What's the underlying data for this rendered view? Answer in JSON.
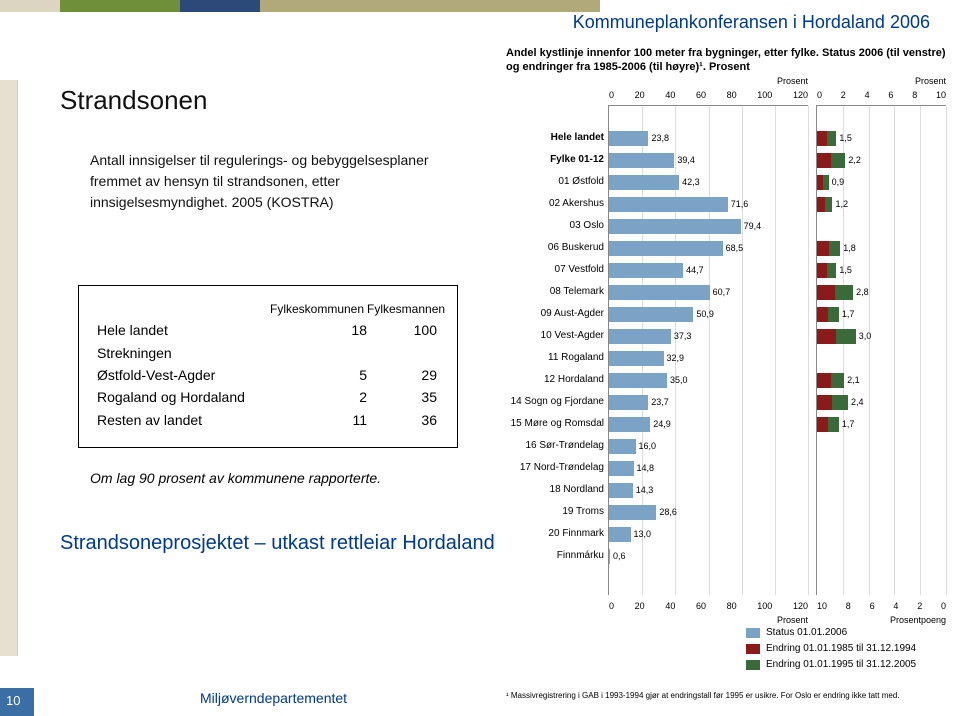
{
  "header_title": "Kommuneplankonferansen i Hordaland 2006",
  "top_bar_colors": [
    "#dcd6c0",
    "#6f8f3a",
    "#2b4a7a",
    "#b2a97a"
  ],
  "top_bar_widths": [
    60,
    120,
    80,
    340
  ],
  "section_title": "Strandsonen",
  "body_text": "Antall innsigelser til regulerings- og bebyggelsesplaner fremmet av hensyn til strandsonen, etter innsigelsesmyndighet. 2005 (KOSTRA)",
  "table": {
    "col_headers": [
      "",
      "Fylkeskommunen",
      "Fylkesmannen"
    ],
    "rows": [
      {
        "label": "Hele landet",
        "a": "18",
        "b": "100"
      },
      {
        "label": "Strekningen",
        "a": "",
        "b": ""
      },
      {
        "label": "Østfold-Vest-Agder",
        "a": "5",
        "b": "29"
      },
      {
        "label": "Rogaland og Hordaland",
        "a": "2",
        "b": "35"
      },
      {
        "label": "Resten av landet",
        "a": "11",
        "b": "36"
      }
    ]
  },
  "note": "Om lag 90 prosent av kommunene rapporterte.",
  "project_link": "Strandsoneprosjektet – utkast rettleiar Hordaland",
  "footer": "Miljøverndepartementet",
  "page_number": "10",
  "chart": {
    "title": "Andel kystlinje innenfor 100 meter fra bygninger, etter fylke. Status 2006 (til venstre) og endringer fra 1985-2006 (til høyre)¹. Prosent",
    "left": {
      "axis_top_label": "Prosent",
      "axis_bottom_label": "Prosent",
      "ticks": [
        "0",
        "20",
        "40",
        "60",
        "80",
        "100",
        "120"
      ],
      "max": 120,
      "bar_color": "#7aa3c6",
      "categories": [
        {
          "label": "Hele landet",
          "bold": true,
          "v": 23.8
        },
        {
          "label": "Fylke 01-12",
          "bold": true,
          "v": 39.4
        },
        {
          "label": "01 Østfold",
          "v": 42.3
        },
        {
          "label": "02 Akershus",
          "v": 71.6
        },
        {
          "label": "03 Oslo",
          "v": 79.4
        },
        {
          "label": "06 Buskerud",
          "v": 68.5
        },
        {
          "label": "07 Vestfold",
          "v": 44.7
        },
        {
          "label": "08 Telemark",
          "v": 60.7
        },
        {
          "label": "09 Aust-Agder",
          "v": 50.9
        },
        {
          "label": "10 Vest-Agder",
          "v": 37.3
        },
        {
          "label": "11 Rogaland",
          "v": 32.9
        },
        {
          "label": "12 Hordaland",
          "v": 35.0
        },
        {
          "label": "14 Sogn og Fjordane",
          "v": 23.7
        },
        {
          "label": "15 Møre og Romsdal",
          "v": 24.9
        },
        {
          "label": "16 Sør-Trøndelag",
          "v": 16.0
        },
        {
          "label": "17 Nord-Trøndelag",
          "v": 14.8
        },
        {
          "label": "18 Nordland",
          "v": 14.3
        },
        {
          "label": "19 Troms",
          "v": 28.6
        },
        {
          "label": "20 Finnmark",
          "v": 13.0
        },
        {
          "label": "Finnmárku",
          "v": 0.6
        }
      ]
    },
    "right": {
      "axis_top_label": "Prosent",
      "axis_bottom_label": "Prosentpoeng",
      "ticks": [
        "0",
        "2",
        "4",
        "6",
        "8",
        "10"
      ],
      "bottom_ticks": [
        "10",
        "8",
        "6",
        "4",
        "2",
        "0"
      ],
      "max": 10,
      "seg1_color": "#8b1a1a",
      "seg2_color": "#3a6a3a",
      "data": [
        {
          "total": 1.5
        },
        {
          "total": 2.2
        },
        {
          "total": 0.9
        },
        {
          "total": 1.2
        },
        {
          "total": 0
        },
        {
          "total": 1.8
        },
        {
          "total": 1.5
        },
        {
          "total": 2.8
        },
        {
          "total": 1.7
        },
        {
          "total": 3.0
        },
        {
          "total": 0
        },
        {
          "total": 2.1
        },
        {
          "total": 2.4
        },
        {
          "total": 1.7
        },
        {
          "total": 0
        },
        {
          "total": 0
        },
        {
          "total": 0
        },
        {
          "total": 0
        },
        {
          "total": 0
        },
        {
          "total": 0
        }
      ]
    },
    "legend": [
      {
        "color": "#7aa3c6",
        "label": "Status 01.01.2006"
      },
      {
        "color": "#8b1a1a",
        "label": "Endring 01.01.1985 til 31.12.1994"
      },
      {
        "color": "#3a6a3a",
        "label": "Endring 01.01.1995 til 31.12.2005"
      }
    ],
    "footnote": "¹ Massivregistrering i GAB i 1993-1994 gjør at endringstall før 1995 er usikre. For Oslo er endring ikke tatt med."
  }
}
